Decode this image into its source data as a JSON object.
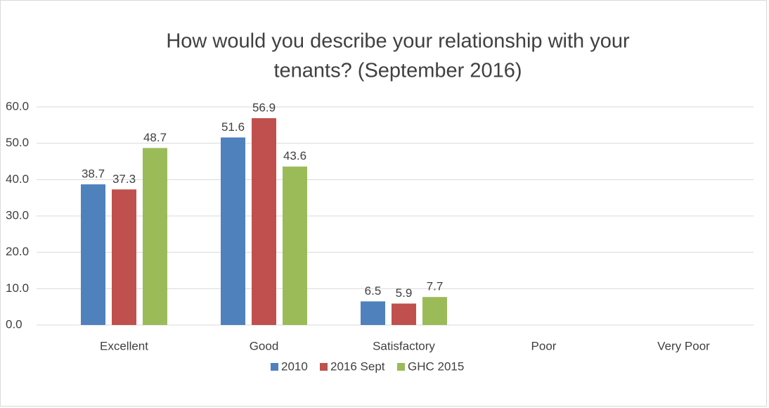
{
  "chart_data": {
    "type": "bar",
    "title": [
      "How would you describe your relationship with your",
      "tenants? (September 2016)"
    ],
    "categories": [
      "Excellent",
      "Good",
      "Satisfactory",
      "Poor",
      "Very Poor"
    ],
    "series": [
      {
        "name": "2010",
        "color": "#4f81bd",
        "values": [
          38.7,
          51.6,
          6.5,
          null,
          null
        ]
      },
      {
        "name": "2016 Sept",
        "color": "#c0504d",
        "values": [
          37.3,
          56.9,
          5.9,
          null,
          null
        ]
      },
      {
        "name": "GHC 2015",
        "color": "#9bbb59",
        "values": [
          48.7,
          43.6,
          7.7,
          null,
          null
        ]
      }
    ],
    "ylim": [
      0,
      60
    ],
    "yticks": [
      {
        "value": 0,
        "label": "0.0"
      },
      {
        "value": 10,
        "label": "10.0"
      },
      {
        "value": 20,
        "label": "20.0"
      },
      {
        "value": 30,
        "label": "30.0"
      },
      {
        "value": 40,
        "label": "40.0"
      },
      {
        "value": 50,
        "label": "50.0"
      },
      {
        "value": 60,
        "label": "60.0"
      }
    ],
    "grid": true,
    "legend": "bottom"
  }
}
